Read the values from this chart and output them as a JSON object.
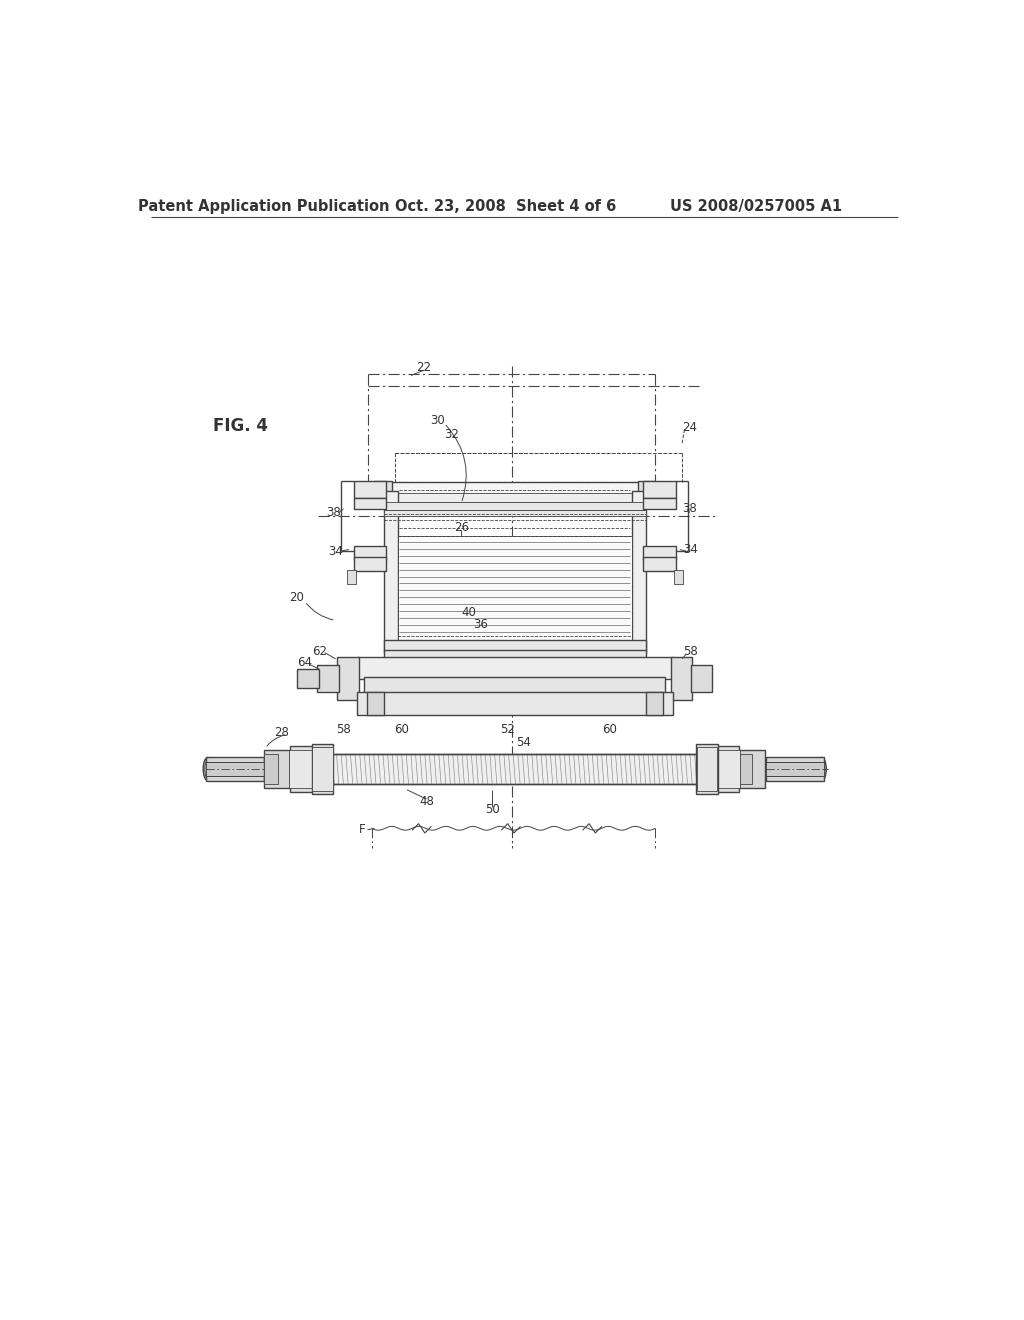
{
  "bg_color": "#ffffff",
  "header_left": "Patent Application Publication",
  "header_mid": "Oct. 23, 2008  Sheet 4 of 6",
  "header_right": "US 2008/0257005 A1",
  "fig_label": "FIG. 4",
  "line_color": "#444444",
  "label_color": "#333333",
  "lw_thin": 0.6,
  "lw_med": 1.0,
  "lw_thick": 1.5,
  "header_fontsize": 10.5,
  "label_fontsize": 8.5
}
